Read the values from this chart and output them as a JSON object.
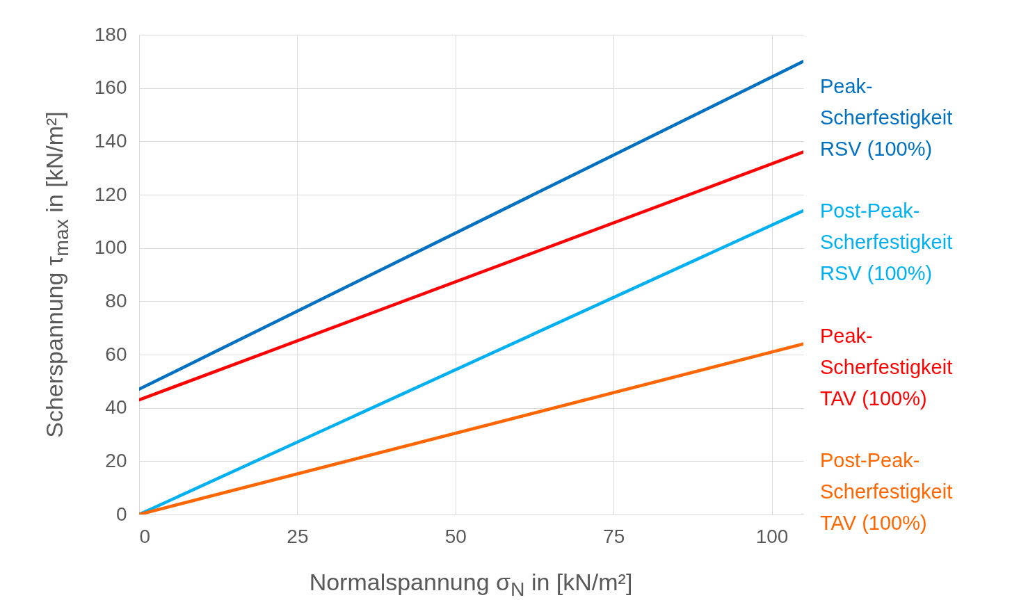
{
  "chart_data": {
    "type": "line",
    "xlabel": "Normalspannung σ$_{N}$ in [kN/m²]",
    "ylabel": "Scherspannung τ$_{max}$ in [kN/m²]",
    "x": [
      0,
      105
    ],
    "series": [
      {
        "name": "Peak-Scherfestigkeit RSV (100%)",
        "color": "#0070c0",
        "values": [
          47,
          170
        ]
      },
      {
        "name": "Post-Peak-Scherfestigkeit RSV (100%)",
        "color": "#00b0f0",
        "values": [
          0,
          114
        ]
      },
      {
        "name": "Peak-Scherfestigkeit TAV (100%)",
        "color": "#ff0000",
        "values": [
          43,
          136
        ]
      },
      {
        "name": "Post-Peak-Scherfestigkeit TAV (100%)",
        "color": "#ff6600",
        "values": [
          0,
          64
        ]
      }
    ],
    "xlim": [
      0,
      105
    ],
    "xticks": [
      0,
      25,
      50,
      75,
      100
    ],
    "ylim": [
      0,
      180
    ],
    "yticks": [
      0,
      20,
      40,
      60,
      80,
      100,
      120,
      140,
      160,
      180
    ],
    "grid": true
  }
}
